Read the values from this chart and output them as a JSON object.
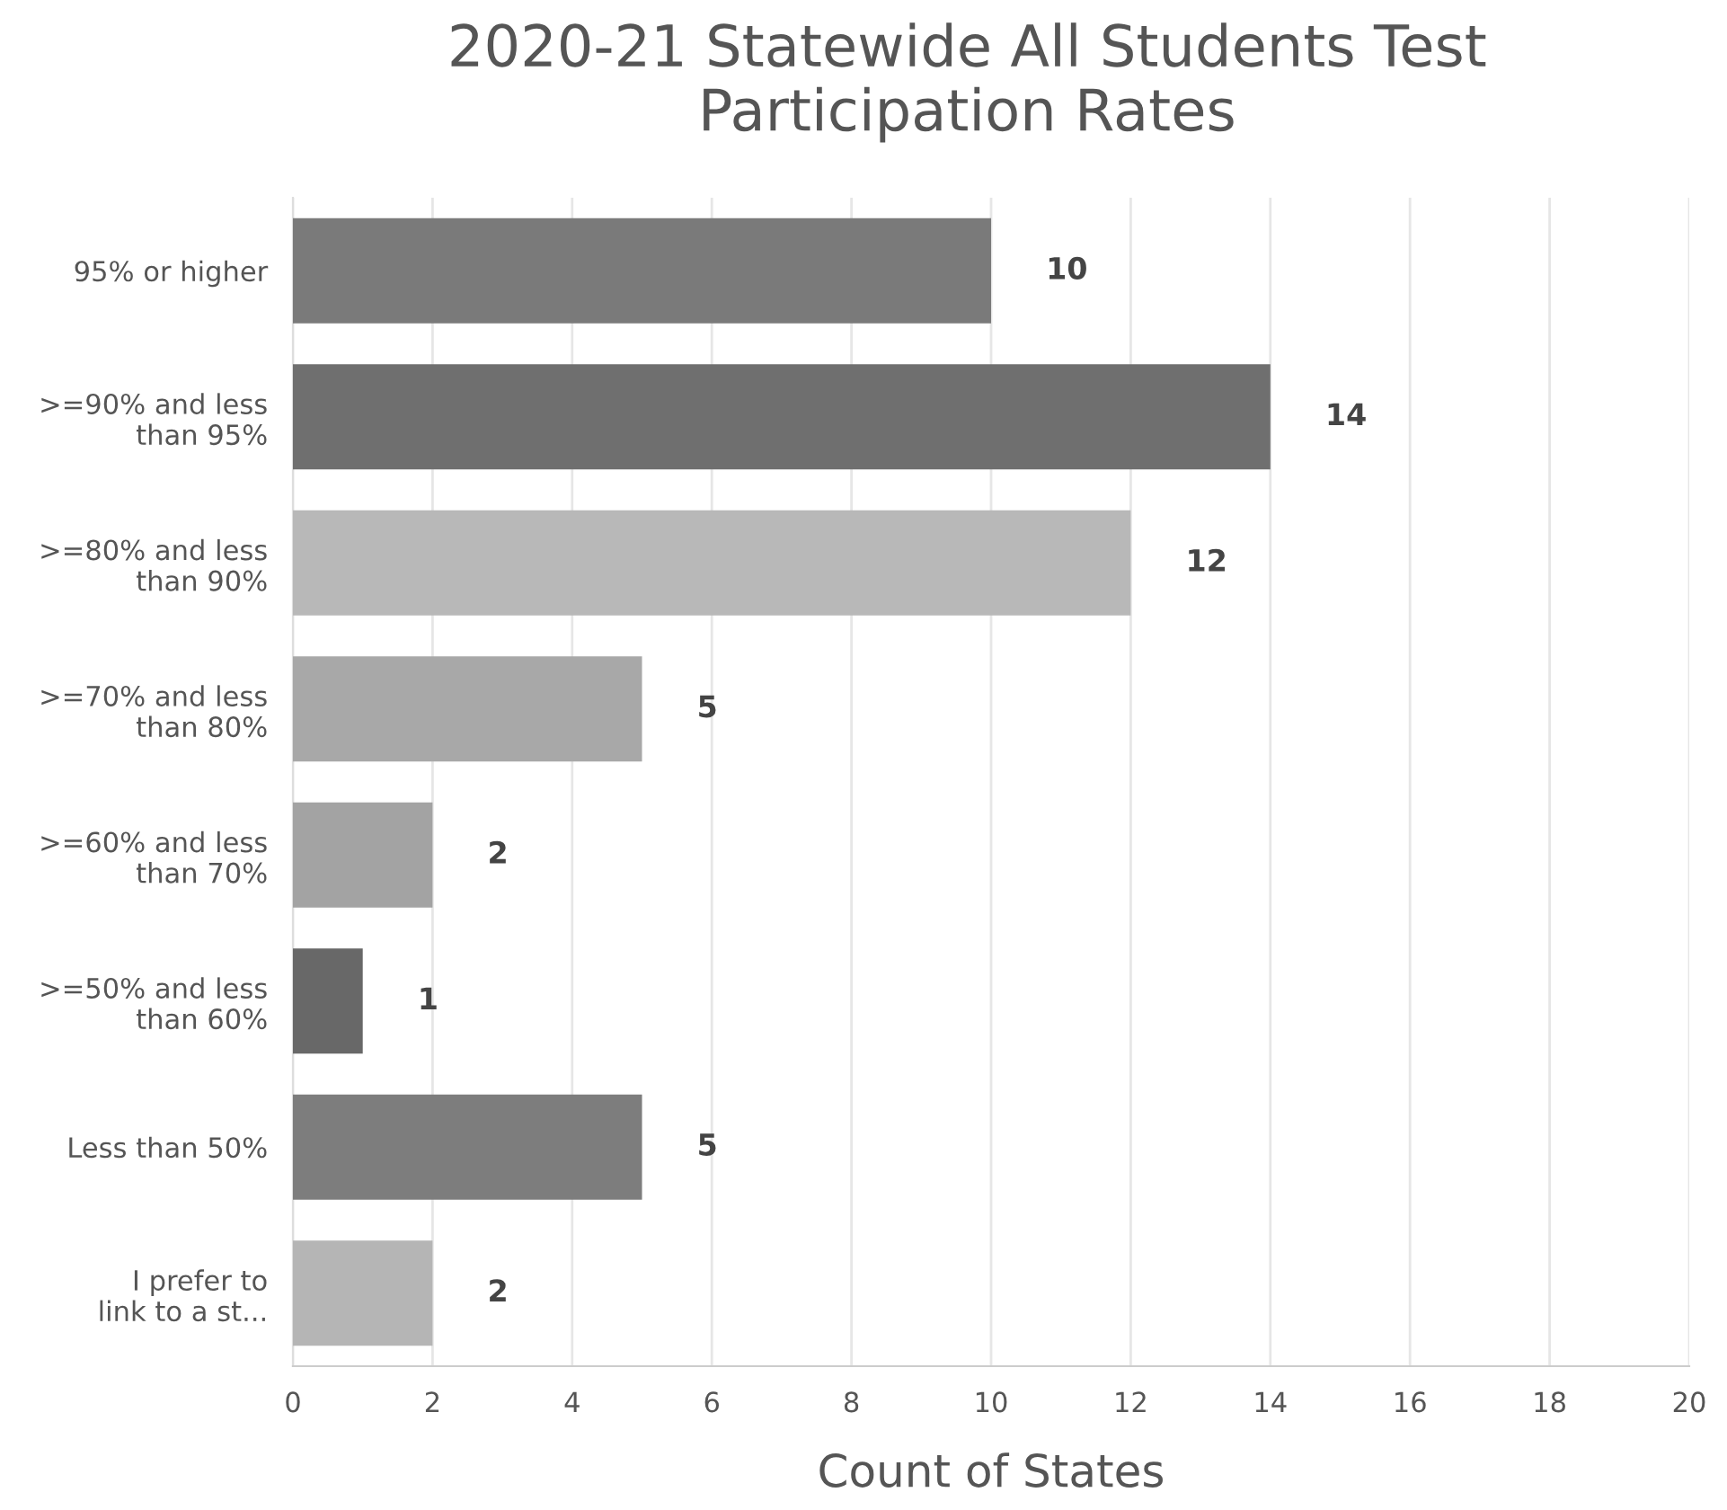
{
  "chart_data": {
    "type": "bar",
    "orientation": "horizontal",
    "title": "2020-21 Statewide All Students Test\nParticipation Rates",
    "xlabel": "Count of States",
    "categories": [
      "95% or higher",
      ">=90% and less\nthan 95%",
      ">=80% and less\nthan 90%",
      ">=70% and less\nthan 80%",
      ">=60% and less\nthan 70%",
      ">=50% and less\nthan 60%",
      "Less than 50%",
      "I prefer to\nlink to a st..."
    ],
    "values": [
      10,
      14,
      12,
      5,
      2,
      1,
      5,
      2
    ],
    "colors": [
      "#7a7a7a",
      "#6f6f6f",
      "#b8b8b8",
      "#a8a8a8",
      "#a3a3a3",
      "#686868",
      "#7d7d7d",
      "#b5b5b5"
    ],
    "xlim": [
      0,
      20
    ],
    "xticks": [
      0,
      2,
      4,
      6,
      8,
      10,
      12,
      14,
      16,
      18,
      20
    ],
    "grid": "x",
    "data_labels": true
  }
}
